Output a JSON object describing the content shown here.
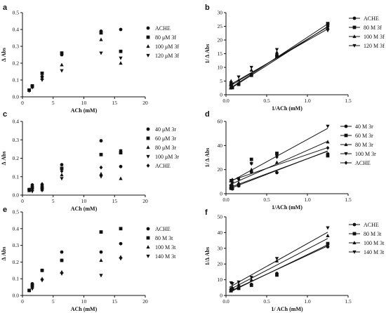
{
  "chart_data": [
    {
      "panel": "a",
      "type": "scatter",
      "xlabel": "ACh (mM)",
      "ylabel": "Δ Abs",
      "xlim": [
        0,
        20
      ],
      "ylim": [
        0,
        0.5
      ],
      "xticks": [
        "0",
        "5",
        "10",
        "15",
        "20"
      ],
      "yticks": [
        "0.0",
        "0.1",
        "0.2",
        "0.3",
        "0.4",
        "0.5"
      ],
      "series": [
        {
          "name": "ACHE",
          "marker": "circle",
          "x": [
            1.1,
            1.6,
            3.2,
            6.4,
            12.8,
            16
          ],
          "y": [
            0.04,
            0.065,
            0.12,
            0.25,
            0.39,
            0.4
          ]
        },
        {
          "name": "80 μM 3f",
          "marker": "square",
          "x": [
            1.1,
            1.6,
            3.2,
            6.4,
            12.8,
            16
          ],
          "y": [
            0.04,
            0.065,
            0.14,
            0.26,
            0.38,
            0.27
          ]
        },
        {
          "name": "100 μM 3f",
          "marker": "triangle",
          "x": [
            1.1,
            1.6,
            3.2,
            6.4,
            12.8,
            16
          ],
          "y": [
            0.04,
            0.06,
            0.11,
            0.19,
            0.34,
            0.2
          ]
        },
        {
          "name": "120 μM 3f",
          "marker": "triangle-down",
          "x": [
            1.1,
            1.6,
            3.2,
            6.4,
            12.8,
            16
          ],
          "y": [
            0.035,
            0.055,
            0.1,
            0.155,
            0.26,
            0.23
          ]
        }
      ]
    },
    {
      "panel": "b",
      "type": "line",
      "xlabel": "1/ACh (mM)",
      "ylabel": "1/ Δ Abs",
      "xlim": [
        0,
        1.5
      ],
      "ylim": [
        0,
        30
      ],
      "xticks": [
        "0.0",
        "0.5",
        "1.0",
        "1.5"
      ],
      "yticks": [
        "0",
        "5",
        "10",
        "15",
        "20",
        "25",
        "30"
      ],
      "series": [
        {
          "name": "ACHE",
          "marker": "circle",
          "x": [
            0.0625,
            0.078,
            0.156,
            0.3125,
            0.625,
            1.25
          ],
          "y": [
            2.5,
            2.6,
            4.0,
            7.5,
            14.5,
            25.0
          ],
          "fit": [
            1.2,
            19.0
          ]
        },
        {
          "name": "80 M 3f",
          "marker": "square",
          "x": [
            0.0625,
            0.078,
            0.156,
            0.3125,
            0.625,
            1.25
          ],
          "y": [
            3.7,
            2.6,
            3.8,
            7.1,
            14.0,
            26.0
          ],
          "fit": [
            1.4,
            19.6
          ]
        },
        {
          "name": "100 M 3f",
          "marker": "triangle",
          "x": [
            0.0625,
            0.078,
            0.156,
            0.3125,
            0.625,
            1.25
          ],
          "y": [
            5.0,
            3.0,
            5.3,
            9.0,
            15.5,
            24.5
          ],
          "fit": [
            2.3,
            18.0
          ]
        },
        {
          "name": "120 M 3f",
          "marker": "triangle-down",
          "x": [
            0.0625,
            0.078,
            0.156,
            0.3125,
            0.625,
            1.25
          ],
          "y": [
            4.3,
            3.8,
            6.5,
            10.0,
            16.5,
            23.5
          ],
          "fit": [
            2.8,
            17.0
          ]
        }
      ]
    },
    {
      "panel": "c",
      "type": "scatter",
      "xlabel": "ACh (mM)",
      "ylabel": "Δ Abs",
      "xlim": [
        0,
        20
      ],
      "ylim": [
        0,
        0.4
      ],
      "xticks": [
        "0",
        "5",
        "10",
        "15",
        "20"
      ],
      "yticks": [
        "0.0",
        "0.1",
        "0.2",
        "0.3",
        "0.4"
      ],
      "series": [
        {
          "name": "40 μM 3r",
          "marker": "circle",
          "x": [
            1.1,
            1.6,
            3.2,
            6.4,
            12.8,
            16
          ],
          "y": [
            0.03,
            0.055,
            0.055,
            0.165,
            0.295,
            0.155
          ]
        },
        {
          "name": "60 μM 3r",
          "marker": "square",
          "x": [
            1.1,
            1.6,
            3.2,
            6.4,
            12.8,
            16
          ],
          "y": [
            0.03,
            0.04,
            0.04,
            0.145,
            0.22,
            0.23
          ]
        },
        {
          "name": "80 μM 3r",
          "marker": "triangle",
          "x": [
            1.1,
            1.6,
            3.2,
            6.4,
            12.8,
            16
          ],
          "y": [
            0.025,
            0.03,
            0.03,
            0.11,
            0.115,
            0.09
          ]
        },
        {
          "name": "100 μM 3r",
          "marker": "triangle-down",
          "x": [
            1.1,
            1.6,
            3.2,
            6.4,
            12.8,
            16
          ],
          "y": [
            0.025,
            0.02,
            0.025,
            0.09,
            0.1,
            0.24
          ]
        },
        {
          "name": "ACHE",
          "marker": "diamond",
          "x": [
            1.1,
            1.6,
            3.2,
            6.4,
            12.8,
            16
          ],
          "y": [
            0.03,
            0.045,
            0.06,
            0.13,
            0.15,
            0.24
          ]
        }
      ]
    },
    {
      "panel": "d",
      "type": "line",
      "xlabel": "1/ACh (mM)",
      "ylabel": "1/ Δ Abs",
      "xlim": [
        0,
        1.5
      ],
      "ylim": [
        0,
        60
      ],
      "xticks": [
        "0.0",
        "0.5",
        "1.0",
        "1.5"
      ],
      "yticks": [
        "0",
        "20",
        "40",
        "60"
      ],
      "series": [
        {
          "name": "40 M 3r",
          "marker": "circle",
          "x": [
            0.0625,
            0.078,
            0.156,
            0.3125,
            0.625,
            1.25
          ],
          "y": [
            6.5,
            4.0,
            6.5,
            18.0,
            17.5,
            33.0
          ],
          "fit": [
            3.0,
            26.0
          ]
        },
        {
          "name": "60 M 3r",
          "marker": "square",
          "x": [
            0.0625,
            0.078,
            0.156,
            0.3125,
            0.625,
            1.25
          ],
          "y": [
            4.5,
            4.5,
            7.0,
            28.5,
            33.5,
            31.5
          ],
          "fit": [
            4.0,
            25.0
          ]
        },
        {
          "name": "80 M 3r",
          "marker": "triangle",
          "x": [
            0.0625,
            0.078,
            0.156,
            0.3125,
            0.625,
            1.25
          ],
          "y": [
            7.5,
            7.5,
            9.0,
            20.0,
            26.0,
            43.0
          ],
          "fit": [
            6.0,
            30.0
          ]
        },
        {
          "name": "100 M 3r",
          "marker": "triangle-down",
          "x": [
            0.0625,
            0.078,
            0.156,
            0.3125,
            0.625,
            1.25
          ],
          "y": [
            11.0,
            9.0,
            12.5,
            25.0,
            31.0,
            56.0
          ],
          "fit": [
            8.0,
            37.0
          ]
        },
        {
          "name": "ACHE",
          "marker": "diamond",
          "x": [
            0.0625,
            0.078,
            0.156,
            0.3125,
            0.625,
            1.25
          ],
          "y": [
            10.5,
            11.5,
            12.0,
            25.0,
            30.5,
            38.0
          ],
          "fit": [
            9.5,
            23.0
          ]
        }
      ]
    },
    {
      "panel": "e",
      "type": "scatter",
      "xlabel": "ACh (mM)",
      "ylabel": "Δ Abs",
      "xlim": [
        0,
        20
      ],
      "ylim": [
        0,
        0.5
      ],
      "xticks": [
        "0",
        "5",
        "10",
        "15",
        "20"
      ],
      "yticks": [
        "0.0",
        "0.1",
        "0.2",
        "0.3",
        "0.4",
        "0.5"
      ],
      "series": [
        {
          "name": "ACHE",
          "marker": "circle",
          "x": [
            1.1,
            1.6,
            3.2,
            6.4,
            12.8,
            16
          ],
          "y": [
            0.03,
            0.07,
            0.15,
            0.26,
            0.26,
            0.31
          ]
        },
        {
          "name": "80 M 3t",
          "marker": "square",
          "x": [
            1.1,
            1.6,
            3.2,
            6.4,
            12.8,
            16
          ],
          "y": [
            0.03,
            0.06,
            0.15,
            0.21,
            0.38,
            0.4
          ]
        },
        {
          "name": "100 M 3t",
          "marker": "triangle",
          "x": [
            1.1,
            1.6,
            3.2,
            6.4,
            12.8,
            16
          ],
          "y": [
            0.03,
            0.05,
            0.1,
            0.14,
            0.21,
            0.23
          ]
        },
        {
          "name": "140 M 3t",
          "marker": "triangle-down",
          "x": [
            1.1,
            1.6,
            3.2,
            6.4,
            12.8,
            16
          ],
          "y": [
            0.03,
            0.04,
            0.09,
            0.13,
            0.12,
            0.22
          ]
        }
      ]
    },
    {
      "panel": "f",
      "type": "line",
      "xlabel": "1/ ACh (mM)",
      "ylabel": "1/Δ Abs",
      "xlim": [
        0,
        1.5
      ],
      "ylim": [
        0,
        50
      ],
      "xticks": [
        "0.0",
        "0.5",
        "1.0",
        "1.5"
      ],
      "yticks": [
        "0",
        "10",
        "20",
        "30",
        "40",
        "50"
      ],
      "series": [
        {
          "name": "ACHE",
          "marker": "circle",
          "x": [
            0.0625,
            0.078,
            0.156,
            0.3125,
            0.625,
            1.25
          ],
          "y": [
            4.0,
            3.8,
            5.0,
            7.0,
            14.0,
            31.0
          ],
          "fit": [
            1.5,
            24.0
          ]
        },
        {
          "name": "80 M 3t",
          "marker": "square",
          "x": [
            0.0625,
            0.078,
            0.156,
            0.3125,
            0.625,
            1.25
          ],
          "y": [
            3.0,
            4.0,
            4.5,
            6.5,
            13.0,
            33.0
          ],
          "fit": [
            1.0,
            25.0
          ]
        },
        {
          "name": "100 M 3t",
          "marker": "triangle",
          "x": [
            0.0625,
            0.078,
            0.156,
            0.3125,
            0.625,
            1.25
          ],
          "y": [
            4.5,
            5.0,
            7.0,
            10.0,
            22.0,
            38.0
          ],
          "fit": [
            2.5,
            27.0
          ]
        },
        {
          "name": "140 M 3t",
          "marker": "triangle-down",
          "x": [
            0.0625,
            0.078,
            0.156,
            0.3125,
            0.625,
            1.25
          ],
          "y": [
            8.0,
            7.5,
            8.5,
            11.5,
            23.5,
            43.0
          ],
          "fit": [
            4.0,
            29.0
          ]
        }
      ]
    }
  ]
}
